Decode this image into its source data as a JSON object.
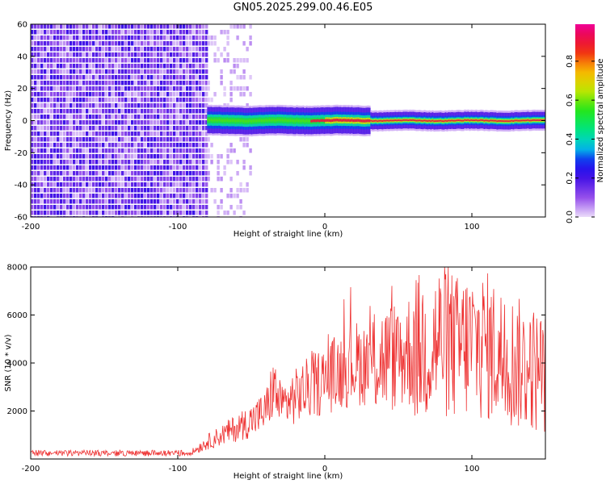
{
  "title": "GN05.2025.299.00.46.E05",
  "chart_data": [
    {
      "type": "heatmap",
      "xlabel": "Height of straight line (km)",
      "ylabel": "Frequency (Hz)",
      "xlim": [
        -200,
        150
      ],
      "ylim": [
        -60,
        60
      ],
      "xticks": [
        -200,
        -100,
        0,
        100
      ],
      "yticks": [
        60,
        40,
        20,
        0,
        -20,
        -40,
        -60
      ],
      "colorbar": {
        "label": "Normalized spectral amplitude",
        "range": [
          0,
          1
        ],
        "ticks": [
          "0.0",
          "0.2",
          "0.4",
          "0.6",
          "0.8"
        ]
      },
      "features": {
        "noise_region_x": [
          -200,
          -80
        ],
        "sparse_region_x": [
          -80,
          -50
        ],
        "signal_center_hz": 0,
        "signal_band_start_x": -80,
        "signal_halfwidth_hz": [
          4,
          7
        ]
      }
    },
    {
      "type": "line",
      "xlabel": "Height of straight line (km)",
      "ylabel": "SNR (10 * v/v)",
      "xlim": [
        -200,
        150
      ],
      "ylim": [
        0,
        8000
      ],
      "xticks": [
        -200,
        -100,
        0,
        100
      ],
      "yticks": [
        2000,
        4000,
        6000,
        8000
      ],
      "series": [
        {
          "color": "#ee3333",
          "x": [
            -200,
            -180,
            -160,
            -140,
            -120,
            -100,
            -90,
            -80,
            -70,
            -60,
            -50,
            -40,
            -35,
            -30,
            -20,
            -10,
            0,
            10,
            20,
            30,
            40,
            50,
            60,
            70,
            80,
            90,
            100,
            110,
            120,
            130,
            140,
            150
          ],
          "y": [
            150,
            150,
            160,
            150,
            170,
            150,
            300,
            700,
            1000,
            1300,
            1600,
            2000,
            3000,
            2200,
            2600,
            3000,
            3300,
            3700,
            4000,
            4000,
            4200,
            4300,
            4600,
            4700,
            5000,
            4600,
            4800,
            4700,
            4300,
            4000,
            3800,
            3600
          ]
        }
      ]
    }
  ]
}
